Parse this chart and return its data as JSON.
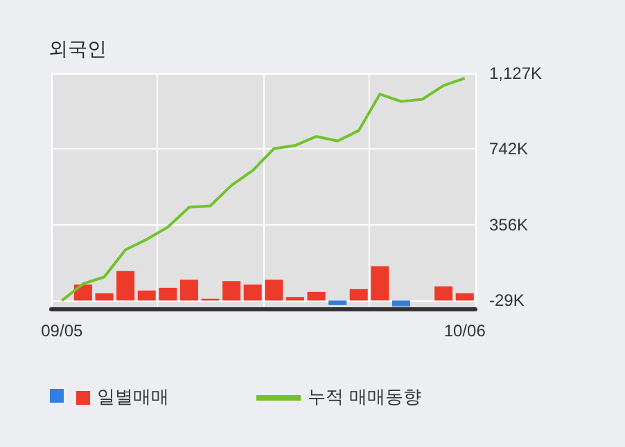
{
  "chart_data": {
    "type": "bar",
    "title": "외국인",
    "categories": [
      "09/05",
      null,
      null,
      null,
      null,
      null,
      null,
      null,
      null,
      null,
      null,
      null,
      null,
      null,
      null,
      null,
      null,
      null,
      null,
      "10/06"
    ],
    "series": [
      {
        "name": "일별매매",
        "colors": [
          null,
          "#ee3a2a",
          "#ee3a2a",
          "#ee3a2a",
          "#ee3a2a",
          "#ee3a2a",
          "#ee3a2a",
          "#ee3a2a",
          "#ee3a2a",
          "#ee3a2a",
          "#ee3a2a",
          "#ee3a2a",
          "#ee3a2a",
          "#3a7bd5",
          "#ee3a2a",
          "#ee3a2a",
          "#3a7bd5",
          null,
          "#ee3a2a",
          "#ee3a2a"
        ],
        "base": [
          null,
          -29,
          -29,
          -29,
          -29,
          -29,
          -29,
          -29,
          -29,
          -29,
          -29,
          -29,
          -29,
          -29,
          -29,
          -29,
          -29,
          null,
          -29,
          -29
        ],
        "values": [
          null,
          81,
          37,
          150,
          51,
          65,
          106,
          9,
          99,
          81,
          106,
          18,
          44,
          -23,
          58,
          175,
          -30,
          null,
          72,
          37
        ]
      },
      {
        "type": "line",
        "name": "누적 매매동향",
        "color": "#72c22e",
        "values": [
          -29,
          56,
          91,
          229,
          282,
          345,
          446,
          453,
          557,
          633,
          744,
          760,
          806,
          783,
          836,
          1021,
          984,
          995,
          1065,
          1102
        ]
      }
    ],
    "ylim": [
      -70,
      1127
    ],
    "yticks": [
      {
        "value": -29,
        "label": "-29K"
      },
      {
        "value": 356,
        "label": "356K"
      },
      {
        "value": 742,
        "label": "742K"
      },
      {
        "value": 1127,
        "label": "1,127K"
      }
    ],
    "grid": true,
    "legend": "bottom left",
    "marker": "none"
  }
}
